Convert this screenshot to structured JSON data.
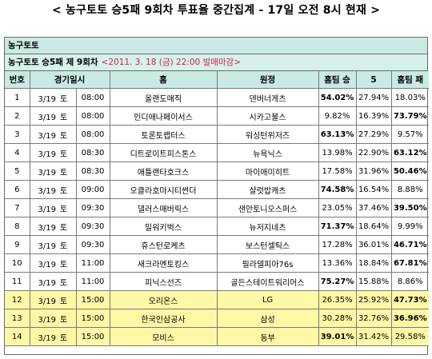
{
  "headline": "< 농구토토 승5패 9회차 투표율 중간집계 - 17일 오전 8시 현재 >",
  "panel_title": "농구토토",
  "subtitle": {
    "text": "농구토토 승5패 제 9회차",
    "deadline": "<2011. 3. 18 (금) 22:00 발매마감>"
  },
  "columns": {
    "no": "번호",
    "datetime": "경기일시",
    "home": "홈",
    "away": "원정",
    "win": "홈팀 승",
    "five": "5",
    "lose": "홈팀 패"
  },
  "highlight_color": "#fdf8a6",
  "header_color": "#c9e9e3",
  "deadline_color": "#d2224d",
  "rows": [
    {
      "no": "1",
      "date": "3/19",
      "day": "토",
      "time": "08:00",
      "home": "올랜도매직",
      "away": "덴버너게츠",
      "win": "54.02%",
      "five": "27.94%",
      "lose": "18.03%",
      "bold": "win",
      "highlight": false
    },
    {
      "no": "2",
      "date": "3/19",
      "day": "토",
      "time": "08:00",
      "home": "인디애나페이서스",
      "away": "시카고불스",
      "win": "9.82%",
      "five": "16.39%",
      "lose": "73.79%",
      "bold": "lose",
      "highlight": false
    },
    {
      "no": "3",
      "date": "3/19",
      "day": "토",
      "time": "08:00",
      "home": "토론토랩터스",
      "away": "워싱턴위저즈",
      "win": "63.13%",
      "five": "27.29%",
      "lose": "9.57%",
      "bold": "win",
      "highlight": false
    },
    {
      "no": "4",
      "date": "3/19",
      "day": "토",
      "time": "08:30",
      "home": "디트로이트피스톤스",
      "away": "뉴욕닉스",
      "win": "13.98%",
      "five": "22.90%",
      "lose": "63.12%",
      "bold": "lose",
      "highlight": false
    },
    {
      "no": "5",
      "date": "3/19",
      "day": "토",
      "time": "08:30",
      "home": "애틀랜타호크스",
      "away": "마이애미히트",
      "win": "17.58%",
      "five": "31.96%",
      "lose": "50.46%",
      "bold": "lose",
      "highlight": false
    },
    {
      "no": "6",
      "date": "3/19",
      "day": "토",
      "time": "09:00",
      "home": "오클라호마시티썬더",
      "away": "샬럿밥캐츠",
      "win": "74.58%",
      "five": "16.54%",
      "lose": "8.88%",
      "bold": "win",
      "highlight": false
    },
    {
      "no": "7",
      "date": "3/19",
      "day": "토",
      "time": "09:30",
      "home": "댈러스매버릭스",
      "away": "샌안토니오스퍼스",
      "win": "23.05%",
      "five": "37.46%",
      "lose": "39.50%",
      "bold": "lose",
      "highlight": false
    },
    {
      "no": "8",
      "date": "3/19",
      "day": "토",
      "time": "09:30",
      "home": "밀워키벅스",
      "away": "뉴저지네츠",
      "win": "71.37%",
      "five": "18.64%",
      "lose": "9.99%",
      "bold": "win",
      "highlight": false
    },
    {
      "no": "9",
      "date": "3/19",
      "day": "토",
      "time": "09:30",
      "home": "휴스턴로케츠",
      "away": "보스턴셀틱스",
      "win": "17.28%",
      "five": "36.01%",
      "lose": "46.71%",
      "bold": "lose",
      "highlight": false
    },
    {
      "no": "10",
      "date": "3/19",
      "day": "토",
      "time": "11:00",
      "home": "새크라멘토킹스",
      "away": "필라델피아76s",
      "win": "13.36%",
      "five": "18.84%",
      "lose": "67.81%",
      "bold": "lose",
      "highlight": false
    },
    {
      "no": "11",
      "date": "3/19",
      "day": "토",
      "time": "11:00",
      "home": "피닉스선즈",
      "away": "골든스테이트워리어스",
      "win": "75.27%",
      "five": "15.88%",
      "lose": "8.86%",
      "bold": "win",
      "highlight": false
    },
    {
      "no": "12",
      "date": "3/19",
      "day": "토",
      "time": "15:00",
      "home": "오리온스",
      "away": "LG",
      "win": "26.35%",
      "five": "25.92%",
      "lose": "47.73%",
      "bold": "lose",
      "highlight": true
    },
    {
      "no": "13",
      "date": "3/19",
      "day": "토",
      "time": "15:00",
      "home": "한국인삼공사",
      "away": "삼성",
      "win": "30.28%",
      "five": "32.76%",
      "lose": "36.96%",
      "bold": "lose",
      "highlight": true
    },
    {
      "no": "14",
      "date": "3/19",
      "day": "토",
      "time": "15:00",
      "home": "모비스",
      "away": "동부",
      "win": "39.01%",
      "five": "31.42%",
      "lose": "29.58%",
      "bold": "win",
      "highlight": true
    }
  ]
}
